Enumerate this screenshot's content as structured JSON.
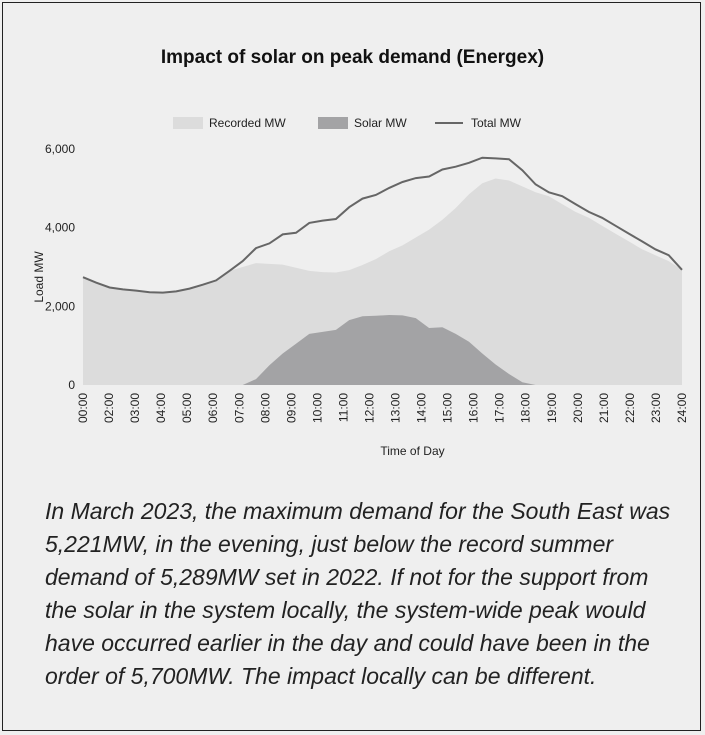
{
  "chart_data": {
    "type": "area",
    "title": "Impact of solar on peak demand (Energex)",
    "xlabel": "Time of Day",
    "ylabel": "Load MW",
    "ylim": [
      0,
      6000
    ],
    "yticks": [
      0,
      2000,
      4000,
      6000
    ],
    "ytick_labels": [
      "0",
      "2,000",
      "4,000",
      "6,000"
    ],
    "xtick_labels": [
      "00:00",
      "02:00",
      "03:00",
      "04:00",
      "05:00",
      "06:00",
      "07:00",
      "08:00",
      "09:00",
      "10:00",
      "11:00",
      "12:00",
      "13:00",
      "14:00",
      "15:00",
      "16:00",
      "17:00",
      "18:00",
      "19:00",
      "20:00",
      "21:00",
      "22:00",
      "23:00",
      "24:00"
    ],
    "legend_position": "top-center",
    "grid": false,
    "colors": {
      "recorded": "#dcdcdc",
      "solar": "#a3a3a5",
      "total": "#666666",
      "background": "#efefef"
    },
    "series": [
      {
        "name": "Recorded MW",
        "style": "area",
        "values": [
          2740,
          2600,
          2480,
          2430,
          2400,
          2360,
          2350,
          2380,
          2450,
          2550,
          2660,
          2900,
          3000,
          3100,
          3080,
          3060,
          2980,
          2900,
          2870,
          2860,
          2920,
          3050,
          3200,
          3400,
          3550,
          3750,
          3950,
          4200,
          4500,
          4850,
          5130,
          5250,
          5200,
          5050,
          4900,
          4800,
          4600,
          4400,
          4250,
          4050,
          3850,
          3650,
          3450,
          3300,
          3150,
          2930
        ]
      },
      {
        "name": "Solar MW",
        "style": "area",
        "values": [
          0,
          0,
          0,
          0,
          0,
          0,
          0,
          0,
          0,
          0,
          0,
          0,
          0,
          150,
          500,
          800,
          1050,
          1300,
          1350,
          1400,
          1650,
          1750,
          1760,
          1780,
          1770,
          1700,
          1450,
          1470,
          1300,
          1100,
          800,
          520,
          280,
          70,
          0,
          0,
          0,
          0,
          0,
          0,
          0,
          0,
          0,
          0,
          0,
          0
        ]
      },
      {
        "name": "Total MW",
        "style": "line",
        "values": [
          2740,
          2600,
          2480,
          2430,
          2400,
          2360,
          2350,
          2380,
          2450,
          2550,
          2660,
          2900,
          3150,
          3480,
          3600,
          3830,
          3870,
          4120,
          4180,
          4220,
          4520,
          4740,
          4830,
          5010,
          5160,
          5260,
          5300,
          5480,
          5550,
          5650,
          5780,
          5760,
          5740,
          5460,
          5100,
          4900,
          4800,
          4600,
          4400,
          4250,
          4050,
          3850,
          3650,
          3450,
          3300,
          2930
        ]
      }
    ]
  },
  "caption": "In March 2023, the maximum demand for the South East was 5,221MW, in the evening, just below the record summer demand of 5,289MW set in 2022. If not for the support from the solar in the system locally, the system-wide peak would have occurred earlier in the day and could have been in the order of 5,700MW. The impact locally can be different."
}
